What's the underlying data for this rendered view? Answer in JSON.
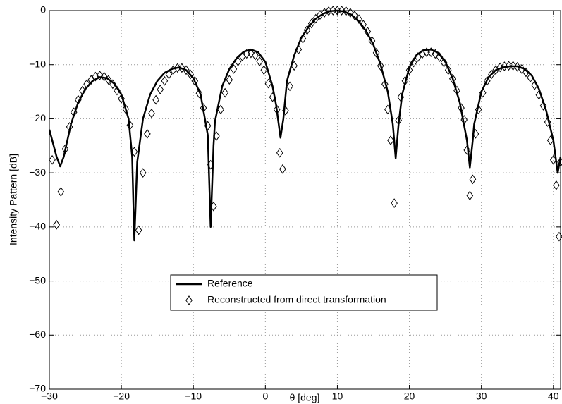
{
  "chart_data": {
    "type": "line",
    "xlabel": "θ [deg]",
    "ylabel": "Intensity Pattern [dB]",
    "xlim": [
      -30,
      41
    ],
    "ylim": [
      -70,
      0
    ],
    "xticks": [
      {
        "value": -30,
        "label": "−30"
      },
      {
        "value": -20,
        "label": "−20"
      },
      {
        "value": -10,
        "label": "−10"
      },
      0,
      10,
      20,
      30,
      40
    ],
    "yticks": [
      {
        "value": -70,
        "label": "−70"
      },
      {
        "value": -60,
        "label": "−60"
      },
      {
        "value": -50,
        "label": "−50"
      },
      {
        "value": -40,
        "label": "−40"
      },
      {
        "value": -30,
        "label": "−30"
      },
      {
        "value": -20,
        "label": "−20"
      },
      {
        "value": -10,
        "label": "−10"
      },
      0
    ],
    "grid": true,
    "legend": "lower center",
    "series": [
      {
        "name": "Reference",
        "color": "#000000",
        "marker": "none",
        "x": [
          -30,
          -29,
          -28.5,
          -28,
          -27,
          -26,
          -25,
          -24,
          -23,
          -22,
          -21,
          -20,
          -19,
          -18.5,
          -18.2,
          -17.8,
          -17,
          -16,
          -15,
          -14,
          -13,
          -12,
          -11,
          -10,
          -9,
          -8,
          -7.6,
          -7.2,
          -7,
          -6,
          -5,
          -4,
          -3,
          -2,
          -1,
          0,
          1,
          1.5,
          2.1,
          2.5,
          3,
          4,
          5,
          6,
          7,
          8,
          9,
          10,
          11,
          12,
          13,
          14,
          15,
          16,
          17,
          17.7,
          18.1,
          18.5,
          19,
          20,
          21,
          22,
          23,
          24,
          25,
          26,
          27,
          28,
          28.4,
          28.8,
          29,
          30,
          31,
          32,
          33,
          34,
          35,
          36,
          37,
          38,
          39,
          40,
          40.6,
          41
        ],
        "values": [
          -22,
          -27,
          -28.8,
          -27,
          -21,
          -17,
          -14.5,
          -13,
          -12.3,
          -12.5,
          -13.5,
          -15.5,
          -20,
          -27,
          -42.5,
          -28,
          -20,
          -15.5,
          -13,
          -11.5,
          -10.8,
          -10.5,
          -11,
          -12.5,
          -15.5,
          -23,
          -40,
          -25,
          -20.5,
          -14,
          -10.8,
          -8.8,
          -7.6,
          -7.2,
          -7.7,
          -9.5,
          -14,
          -17.5,
          -23.5,
          -20,
          -13,
          -8.3,
          -5,
          -3,
          -1.5,
          -0.6,
          -0.1,
          0,
          -0.2,
          -0.8,
          -2,
          -3.8,
          -6.3,
          -10,
          -15,
          -21,
          -27.3,
          -21,
          -15.5,
          -10.5,
          -8.2,
          -7.3,
          -7.2,
          -7.8,
          -9.5,
          -12.5,
          -17,
          -24,
          -29,
          -24,
          -21,
          -15,
          -12.3,
          -11,
          -10.5,
          -10.3,
          -10.3,
          -10.8,
          -12,
          -14.5,
          -18.5,
          -24,
          -30,
          -27
        ]
      },
      {
        "name": "Reconstructed from direct transformation",
        "color": "#000000",
        "marker": "diamond",
        "x": [
          -29.6,
          -29,
          -28.4,
          -27.8,
          -27.2,
          -26.6,
          -26,
          -25.4,
          -24.8,
          -24.2,
          -23.6,
          -23,
          -22.4,
          -21.8,
          -21.2,
          -20.6,
          -20,
          -19.4,
          -18.8,
          -18.2,
          -17.6,
          -17,
          -16.4,
          -15.8,
          -15.2,
          -14.6,
          -14,
          -13.4,
          -12.8,
          -12.2,
          -11.6,
          -11,
          -10.4,
          -9.8,
          -9.2,
          -8.6,
          -8,
          -7.6,
          -7.2,
          -6.8,
          -6.2,
          -5.6,
          -5,
          -4.4,
          -3.8,
          -3.2,
          -2.6,
          -2,
          -1.4,
          -0.8,
          -0.2,
          0.4,
          1,
          1.6,
          2,
          2.4,
          2.8,
          3.4,
          4,
          4.6,
          5.2,
          5.8,
          6.4,
          7,
          7.6,
          8.2,
          8.8,
          9.4,
          10,
          10.6,
          11.2,
          11.8,
          12.4,
          13,
          13.6,
          14.2,
          14.8,
          15.4,
          16,
          16.6,
          17,
          17.4,
          17.9,
          18.5,
          18.8,
          19.4,
          20,
          20.6,
          21.2,
          21.8,
          22.4,
          23,
          23.6,
          24.2,
          24.8,
          25.4,
          26,
          26.6,
          27.2,
          27.6,
          28,
          28.4,
          28.8,
          29.2,
          29.6,
          30.2,
          30.8,
          31.4,
          32,
          32.6,
          33.2,
          33.8,
          34.4,
          35,
          35.6,
          36.2,
          36.8,
          37.4,
          38,
          38.6,
          39.2,
          39.6,
          40,
          40.4,
          40.8,
          41
        ],
        "values": [
          -27.6,
          -39.6,
          -33.5,
          -25.6,
          -21.5,
          -18.8,
          -16.5,
          -14.8,
          -13.6,
          -12.8,
          -12.2,
          -12,
          -12.2,
          -12.8,
          -13.6,
          -14.8,
          -16.3,
          -18.2,
          -21.2,
          -26.1,
          -40.6,
          -30,
          -22.8,
          -19,
          -16.5,
          -14.6,
          -13,
          -11.8,
          -11,
          -10.6,
          -10.6,
          -11,
          -11.8,
          -13,
          -15.3,
          -18,
          -21.3,
          -28.5,
          -36.2,
          -23.2,
          -18.3,
          -15.2,
          -12.8,
          -10.8,
          -9.4,
          -8.5,
          -8,
          -7.9,
          -8.3,
          -9.4,
          -11,
          -13.5,
          -16,
          -18.3,
          -26.3,
          -29.3,
          -18.5,
          -14,
          -10.2,
          -7.2,
          -5.2,
          -3.6,
          -2.4,
          -1.5,
          -0.8,
          -0.4,
          -0.1,
          0,
          0,
          0,
          -0.1,
          -0.4,
          -0.9,
          -1.6,
          -2.6,
          -3.9,
          -5.6,
          -7.8,
          -10.2,
          -13.6,
          -18.3,
          -24,
          -35.6,
          -20.3,
          -16,
          -13,
          -11,
          -9.6,
          -8.6,
          -8,
          -7.7,
          -7.7,
          -8,
          -8.6,
          -9.6,
          -11,
          -12.6,
          -14.8,
          -18,
          -20.2,
          -25.8,
          -34.2,
          -31.2,
          -22.8,
          -18.3,
          -15.2,
          -13,
          -11.8,
          -11,
          -10.5,
          -10.3,
          -10.2,
          -10.2,
          -10.4,
          -10.8,
          -11.4,
          -12.4,
          -13.8,
          -15.6,
          -17.6,
          -20.6,
          -24,
          -27.6,
          -32.3,
          -41.8,
          -28
        ]
      }
    ]
  }
}
